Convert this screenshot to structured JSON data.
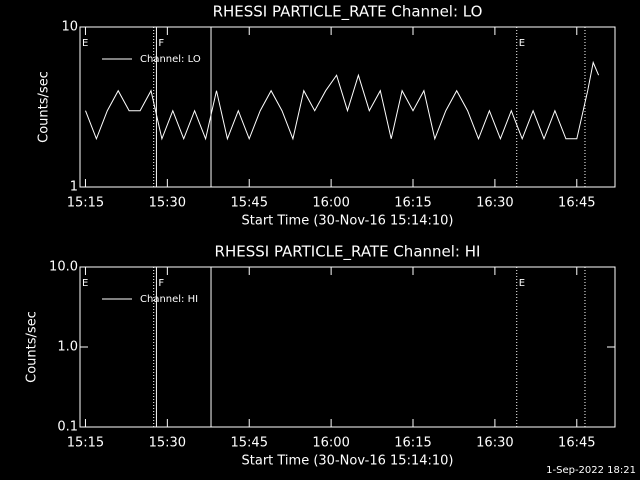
{
  "chart_data": [
    {
      "type": "line",
      "title": "RHESSI PARTICLE_RATE Channel: LO",
      "x_label": "Start Time (30-Nov-16 15:14:10)",
      "y_label": "Counts/sec",
      "log_y": true,
      "ylim": [
        1,
        10
      ],
      "yticks": [
        1,
        10
      ],
      "xlim": [
        "15:14",
        "16:52"
      ],
      "xticks": [
        "15:15",
        "15:30",
        "15:45",
        "16:00",
        "16:15",
        "16:30",
        "16:45"
      ],
      "markers": [
        {
          "x": "15:14",
          "label": "E",
          "style": "none"
        },
        {
          "x": "15:27:30",
          "label": null,
          "style": "dotted"
        },
        {
          "x": "15:28",
          "label": "F",
          "style": "solid"
        },
        {
          "x": "15:38",
          "label": null,
          "style": "solid"
        },
        {
          "x": "16:34",
          "label": "E",
          "style": "dotted"
        },
        {
          "x": "16:46:30",
          "label": null,
          "style": "dotted"
        }
      ],
      "x": [
        "15:15",
        "15:17",
        "15:19",
        "15:21",
        "15:23",
        "15:25",
        "15:27",
        "15:29",
        "15:31",
        "15:33",
        "15:35",
        "15:37",
        "15:39",
        "15:41",
        "15:43",
        "15:45",
        "15:47",
        "15:49",
        "15:51",
        "15:53",
        "15:55",
        "15:57",
        "15:59",
        "16:01",
        "16:03",
        "16:05",
        "16:07",
        "16:09",
        "16:11",
        "16:13",
        "16:15",
        "16:17",
        "16:19",
        "16:21",
        "16:23",
        "16:25",
        "16:27",
        "16:29",
        "16:31",
        "16:33",
        "16:35",
        "16:37",
        "16:39",
        "16:41",
        "16:43",
        "16:45",
        "16:47",
        "16:48",
        "16:49"
      ],
      "series": [
        {
          "name": "Channel: LO",
          "color": "#ffffff",
          "values": [
            3,
            2,
            3,
            4,
            3,
            3,
            4,
            2,
            3,
            2,
            3,
            2,
            4,
            2,
            3,
            2,
            3,
            4,
            3,
            2,
            4,
            3,
            4,
            5,
            3,
            5,
            3,
            4,
            2,
            4,
            3,
            4,
            2,
            3,
            4,
            3,
            2,
            3,
            2,
            3,
            2,
            3,
            2,
            3,
            2,
            2,
            4,
            6,
            5
          ]
        }
      ]
    },
    {
      "type": "line",
      "title": "RHESSI PARTICLE_RATE Channel: HI",
      "x_label": "Start Time (30-Nov-16 15:14:10)",
      "y_label": "Counts/sec",
      "log_y": true,
      "ylim": [
        0.1,
        10
      ],
      "yticks": [
        0.1,
        {
          "value": 1,
          "label": "1.0"
        },
        {
          "value": 10,
          "label": "10.0"
        }
      ],
      "xlim": [
        "15:14",
        "16:52"
      ],
      "xticks": [
        "15:15",
        "15:30",
        "15:45",
        "16:00",
        "16:15",
        "16:30",
        "16:45"
      ],
      "markers": [
        {
          "x": "15:14",
          "label": "E",
          "style": "none"
        },
        {
          "x": "15:27:30",
          "label": null,
          "style": "dotted"
        },
        {
          "x": "15:28",
          "label": "F",
          "style": "solid"
        },
        {
          "x": "15:38",
          "label": null,
          "style": "solid"
        },
        {
          "x": "16:34",
          "label": "E",
          "style": "dotted"
        },
        {
          "x": "16:46:30",
          "label": null,
          "style": "dotted"
        }
      ],
      "x": [],
      "series": [
        {
          "name": "Channel: HI",
          "color": "#ffffff",
          "values": []
        }
      ]
    }
  ],
  "footer": "1-Sep-2022 18:21"
}
